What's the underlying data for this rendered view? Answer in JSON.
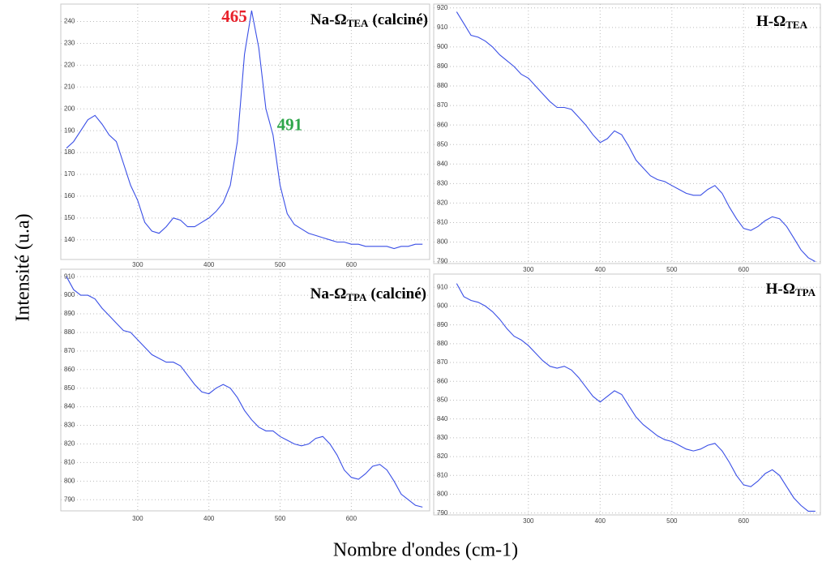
{
  "axis_labels": {
    "ylabel": "Intensité (u.a)",
    "xlabel": "Nombre d'ondes (cm-1)"
  },
  "chart_data": [
    {
      "type": "line",
      "title": "Na-Ω",
      "title_sub": "TEA",
      "title_suffix": "(calciné)",
      "x": [
        200,
        210,
        220,
        230,
        240,
        250,
        260,
        270,
        280,
        290,
        300,
        310,
        320,
        330,
        340,
        350,
        360,
        370,
        380,
        390,
        400,
        410,
        420,
        430,
        440,
        450,
        460,
        470,
        480,
        490,
        500,
        510,
        520,
        530,
        540,
        550,
        560,
        570,
        580,
        590,
        600,
        610,
        620,
        630,
        640,
        650,
        660,
        670,
        680,
        690,
        700
      ],
      "series": [
        {
          "color": "#3a4fe6",
          "values": [
            182,
            185,
            190,
            195,
            197,
            193,
            188,
            185,
            175,
            165,
            158,
            148,
            144,
            143,
            146,
            150,
            149,
            146,
            146,
            148,
            150,
            153,
            157,
            165,
            185,
            225,
            245,
            228,
            200,
            188,
            165,
            152,
            147,
            145,
            143,
            142,
            141,
            140,
            139,
            139,
            138,
            138,
            137,
            137,
            137,
            137,
            136,
            137,
            137,
            138,
            138
          ]
        }
      ],
      "annotations": [
        {
          "text": "465",
          "x": 465,
          "color": "#e8202a"
        },
        {
          "text": "491",
          "x": 491,
          "color": "#2ea64a"
        }
      ],
      "xlim": [
        192,
        710
      ],
      "ylim": [
        131,
        248
      ],
      "xticks": [
        300,
        400,
        500,
        600
      ],
      "yticks": [
        140,
        150,
        160,
        170,
        180,
        190,
        200,
        210,
        220,
        230,
        240
      ],
      "grid": true
    },
    {
      "type": "line",
      "title": "H-Ω",
      "title_sub": "TEA",
      "x": [
        200,
        210,
        220,
        230,
        240,
        250,
        260,
        270,
        280,
        290,
        300,
        310,
        320,
        330,
        340,
        350,
        360,
        370,
        380,
        390,
        400,
        410,
        420,
        430,
        440,
        450,
        460,
        470,
        480,
        490,
        500,
        510,
        520,
        530,
        540,
        550,
        560,
        570,
        580,
        590,
        600,
        610,
        620,
        630,
        640,
        650,
        660,
        670,
        680,
        690,
        700
      ],
      "series": [
        {
          "color": "#3a4fe6",
          "values": [
            918,
            912,
            906,
            905,
            903,
            900,
            896,
            893,
            890,
            886,
            884,
            880,
            876,
            872,
            869,
            869,
            868,
            864,
            860,
            855,
            851,
            853,
            857,
            855,
            849,
            842,
            838,
            834,
            832,
            831,
            829,
            827,
            825,
            824,
            824,
            827,
            829,
            825,
            818,
            812,
            807,
            806,
            808,
            811,
            813,
            812,
            808,
            802,
            796,
            792,
            790
          ]
        }
      ],
      "xlim": [
        168,
        707
      ],
      "ylim": [
        789,
        922
      ],
      "xticks": [
        300,
        400,
        500,
        600
      ],
      "yticks": [
        790,
        800,
        810,
        820,
        830,
        840,
        850,
        860,
        870,
        880,
        890,
        900,
        910,
        920
      ],
      "grid": true
    },
    {
      "type": "line",
      "title": "Na-Ω",
      "title_sub": "TPA",
      "title_suffix": "(calciné)",
      "x": [
        200,
        210,
        220,
        230,
        240,
        250,
        260,
        270,
        280,
        290,
        300,
        310,
        320,
        330,
        340,
        350,
        360,
        370,
        380,
        390,
        400,
        410,
        420,
        430,
        440,
        450,
        460,
        470,
        480,
        490,
        500,
        510,
        520,
        530,
        540,
        550,
        560,
        570,
        580,
        590,
        600,
        610,
        620,
        630,
        640,
        650,
        660,
        670,
        680,
        690,
        700
      ],
      "series": [
        {
          "color": "#3a4fe6",
          "values": [
            910,
            903,
            900,
            900,
            898,
            893,
            889,
            885,
            881,
            880,
            876,
            872,
            868,
            866,
            864,
            864,
            862,
            857,
            852,
            848,
            847,
            850,
            852,
            850,
            845,
            838,
            833,
            829,
            827,
            827,
            824,
            822,
            820,
            819,
            820,
            823,
            824,
            820,
            814,
            806,
            802,
            801,
            804,
            808,
            809,
            806,
            800,
            793,
            790,
            787,
            786
          ]
        }
      ],
      "xlim": [
        192,
        710
      ],
      "ylim": [
        784,
        914
      ],
      "xticks": [
        300,
        400,
        500,
        600
      ],
      "yticks": [
        790,
        800,
        810,
        820,
        830,
        840,
        850,
        860,
        870,
        880,
        890,
        900,
        910
      ],
      "grid": true
    },
    {
      "type": "line",
      "title": "H-Ω",
      "title_sub": "TPA",
      "x": [
        200,
        210,
        220,
        230,
        240,
        250,
        260,
        270,
        280,
        290,
        300,
        310,
        320,
        330,
        340,
        350,
        360,
        370,
        380,
        390,
        400,
        410,
        420,
        430,
        440,
        450,
        460,
        470,
        480,
        490,
        500,
        510,
        520,
        530,
        540,
        550,
        560,
        570,
        580,
        590,
        600,
        610,
        620,
        630,
        640,
        650,
        660,
        670,
        680,
        690,
        700
      ],
      "series": [
        {
          "color": "#3a4fe6",
          "values": [
            912,
            905,
            903,
            902,
            900,
            897,
            893,
            888,
            884,
            882,
            879,
            875,
            871,
            868,
            867,
            868,
            866,
            862,
            857,
            852,
            849,
            852,
            855,
            853,
            847,
            841,
            837,
            834,
            831,
            829,
            828,
            826,
            824,
            823,
            824,
            826,
            827,
            823,
            817,
            810,
            805,
            804,
            807,
            811,
            813,
            810,
            804,
            798,
            794,
            791,
            791
          ]
        }
      ],
      "xlim": [
        168,
        707
      ],
      "ylim": [
        789,
        917
      ],
      "xticks": [
        300,
        400,
        500,
        600
      ],
      "yticks": [
        790,
        800,
        810,
        820,
        830,
        840,
        850,
        860,
        870,
        880,
        890,
        900,
        910
      ],
      "grid": true
    }
  ]
}
